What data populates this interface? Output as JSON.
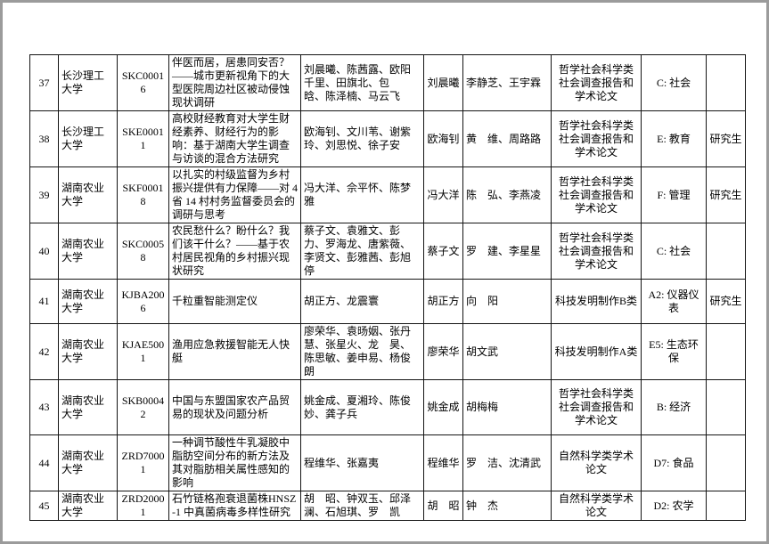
{
  "page": {
    "background_color": "#ffffff",
    "frame_border_color": "#9b9b9b",
    "table_border_color": "#141414"
  },
  "table": {
    "rows": [
      {
        "no": "37",
        "school": "长沙理工大学",
        "code": "SKC00016",
        "title": "伴医而居，居患同安否？——城市更新视角下的大型医院周边社区被动侵蚀现状调研",
        "members": "刘晨曦、陈茜露、欧阳千里、田旗北、包　晗、陈泽楠、马云飞",
        "leader": "刘晨曦",
        "advisors": "李静芝、王宇霖",
        "category": "哲学社会科学类社会调查报告和学术论文",
        "group": "C: 社会",
        "grad": ""
      },
      {
        "no": "38",
        "school": "长沙理工大学",
        "code": "SKE00011",
        "title": "高校财经教育对大学生财经素养、财经行为的影响：基于湖南大学生调查与访谈的混合方法研究",
        "members": "欧海钊、文川苇、谢紫玲、刘思悦、徐子安",
        "leader": "欧海钊",
        "advisors": "黄　维、周路路",
        "category": "哲学社会科学类社会调查报告和学术论文",
        "group": "E: 教育",
        "grad": "研究生"
      },
      {
        "no": "39",
        "school": "湖南农业大学",
        "code": "SKF00018",
        "title": "以扎实的村级监督为乡村振兴提供有力保障——对 4 省 14 村村务监督委员会的调研与思考",
        "members": "冯大洋、佘平怀、陈梦雅",
        "leader": "冯大洋",
        "advisors": "陈　弘、李燕凌",
        "category": "哲学社会科学类社会调查报告和学术论文",
        "group": "F: 管理",
        "grad": "研究生"
      },
      {
        "no": "40",
        "school": "湖南农业大学",
        "code": "SKC00058",
        "title": "农民愁什么？盼什么？我们该干什么？——基于农村居民视角的乡村振兴现状研究",
        "members": "蔡子文、袁雅文、彭　力、罗海龙、唐紫薇、李贤文、彭雅茜、彭旭停",
        "leader": "蔡子文",
        "advisors": "罗　建、李星星",
        "category": "哲学社会科学类社会调查报告和学术论文",
        "group": "C: 社会",
        "grad": ""
      },
      {
        "no": "41",
        "school": "湖南农业大学",
        "code": "KJBA2006",
        "title": "千粒重智能测定仪",
        "members": "胡正方、龙震寰",
        "leader": "胡正方",
        "advisors": "向　阳",
        "category": "科技发明制作B类",
        "group": "A2: 仪器仪表",
        "grad": "研究生"
      },
      {
        "no": "42",
        "school": "湖南农业大学",
        "code": "KJAE5001",
        "title": "渔用应急救援智能无人快艇",
        "members": "廖荣华、袁旸姻、张丹慧、张星火、龙　昊、陈思敏、姜申易、杨俊朗",
        "leader": "廖荣华",
        "advisors": "胡文武",
        "category": "科技发明制作A类",
        "group": "E5: 生态环保",
        "grad": ""
      },
      {
        "no": "43",
        "school": "湖南农业大学",
        "code": "SKB00042",
        "title": "中国与东盟国家农产品贸易的现状及问题分析",
        "members": "姚金成、夏湘玲、陈俊妙、龚子兵",
        "leader": "姚金成",
        "advisors": "胡梅梅",
        "category": "哲学社会科学类社会调查报告和学术论文",
        "group": "B: 经济",
        "grad": ""
      },
      {
        "no": "44",
        "school": "湖南农业大学",
        "code": "ZRD70001",
        "title": "一种调节酸性牛乳凝胶中脂肪空间分布的新方法及其对脂肪相关属性感知的影响",
        "members": "程维华、张嘉夷",
        "leader": "程维华",
        "advisors": "罗　洁、沈清武",
        "category": "自然科学类学术论文",
        "group": "D7: 食品",
        "grad": ""
      },
      {
        "no": "45",
        "school": "湖南农业大学",
        "code": "ZRD20001",
        "title": "石竹链格孢衰退菌株HNSZ-1 中真菌病毒多样性研究",
        "members": "胡　昭、钟双玉、邱泽澜、石旭琪、罗　凯",
        "leader": "胡　昭",
        "advisors": "钟　杰",
        "category": "自然科学类学术论文",
        "group": "D2: 农学",
        "grad": ""
      }
    ]
  }
}
